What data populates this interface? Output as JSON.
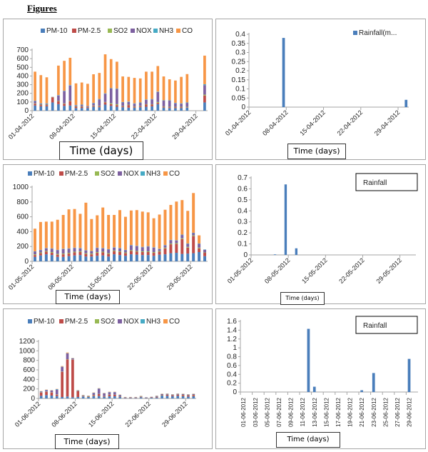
{
  "heading": "Figures",
  "colors": {
    "PM-10": "#4a7ebb",
    "PM-2.5": "#be4b48",
    "SO2": "#98b954",
    "NOX": "#7d60a0",
    "NH3": "#46aac5",
    "CO": "#f79646",
    "Rainfall": "#4a7ebb"
  },
  "chart_data": [
    {
      "id": "april-pollutants",
      "type": "bar",
      "stacked": true,
      "title": "",
      "xlabel": "Time (days)",
      "ylabel": "",
      "ylim": [
        0,
        700
      ],
      "yticks": [
        0,
        100,
        200,
        300,
        400,
        500,
        600,
        700
      ],
      "xtick_labels": [
        "01-04-2012",
        "08-04-2012",
        "15-04-2012",
        "22-04-2012",
        "29-04-2012"
      ],
      "legend": [
        "PM-10",
        "PM-2.5",
        "SO2",
        "NOX",
        "NH3",
        "CO"
      ],
      "legend_position": "top",
      "days": 30,
      "series": [
        {
          "name": "PM-10",
          "values": [
            60,
            50,
            50,
            95,
            75,
            55,
            60,
            30,
            30,
            30,
            45,
            40,
            70,
            55,
            45,
            40,
            35,
            35,
            40,
            45,
            50,
            75,
            35,
            30,
            30,
            30,
            35,
            null,
            null,
            95
          ]
        },
        {
          "name": "PM-2.5",
          "values": [
            20,
            15,
            15,
            60,
            35,
            25,
            50,
            15,
            15,
            10,
            10,
            10,
            25,
            20,
            20,
            10,
            30,
            10,
            10,
            25,
            20,
            15,
            10,
            10,
            10,
            10,
            5,
            null,
            null,
            80
          ]
        },
        {
          "name": "SO2",
          "values": [
            5,
            5,
            5,
            3,
            5,
            5,
            5,
            5,
            5,
            3,
            5,
            5,
            5,
            10,
            10,
            5,
            5,
            5,
            5,
            5,
            5,
            10,
            5,
            5,
            5,
            5,
            5,
            null,
            null,
            10
          ]
        },
        {
          "name": "NOX",
          "values": [
            25,
            10,
            10,
            2,
            60,
            140,
            175,
            10,
            15,
            10,
            25,
            75,
            95,
            170,
            175,
            40,
            30,
            30,
            35,
            50,
            55,
            115,
            65,
            70,
            40,
            35,
            45,
            null,
            null,
            110
          ]
        },
        {
          "name": "NH3",
          "values": [
            5,
            5,
            5,
            0,
            5,
            5,
            5,
            5,
            5,
            2,
            5,
            5,
            5,
            5,
            5,
            5,
            5,
            5,
            5,
            5,
            5,
            5,
            5,
            5,
            5,
            5,
            5,
            null,
            null,
            10
          ]
        },
        {
          "name": "CO",
          "values": [
            335,
            325,
            300,
            0,
            340,
            345,
            315,
            250,
            255,
            255,
            330,
            300,
            450,
            335,
            310,
            295,
            285,
            293,
            277,
            320,
            315,
            295,
            275,
            242,
            258,
            305,
            327,
            null,
            null,
            330
          ]
        }
      ]
    },
    {
      "id": "april-rainfall",
      "type": "bar",
      "title": "",
      "xlabel": "Time (days)",
      "ylabel": "",
      "ylim": [
        0,
        0.4
      ],
      "yticks": [
        0,
        0.05,
        0.1,
        0.15,
        0.2,
        0.25,
        0.3,
        0.35,
        0.4
      ],
      "xtick_labels": [
        "01-04-2012",
        "08-04-2012",
        "15-04-2012",
        "22-04-2012",
        "29-04-2012"
      ],
      "legend": [
        "Rainfall(m..."
      ],
      "legend_position": "top-right",
      "legend_boxed": false,
      "days": 30,
      "series": [
        {
          "name": "Rainfall(m...",
          "values": [
            0,
            0,
            0,
            0,
            0,
            0,
            0.38,
            0,
            0,
            0,
            0,
            0,
            0,
            0,
            0,
            0,
            0,
            0,
            0,
            0,
            0,
            0,
            0,
            0,
            0,
            0,
            0,
            0,
            0,
            0.04
          ]
        }
      ]
    },
    {
      "id": "may-pollutants",
      "type": "bar",
      "stacked": true,
      "title": "",
      "xlabel": "Time (days)",
      "ylabel": "",
      "ylim": [
        0,
        1000
      ],
      "yticks": [
        0,
        200,
        400,
        600,
        800,
        1000
      ],
      "xtick_labels": [
        "01-05-2012",
        "08-05-2012",
        "15-05-2012",
        "22-05-2012",
        "29-05-2012"
      ],
      "legend": [
        "PM-10",
        "PM-2.5",
        "SO2",
        "NOX",
        "NH3",
        "CO"
      ],
      "legend_position": "top",
      "days": 31,
      "series": [
        {
          "name": "PM-10",
          "values": [
            60,
            80,
            95,
            85,
            60,
            60,
            70,
            80,
            85,
            65,
            65,
            75,
            80,
            65,
            95,
            85,
            75,
            95,
            90,
            85,
            85,
            75,
            90,
            95,
            110,
            115,
            100,
            105,
            110,
            125,
            70
          ]
        },
        {
          "name": "PM-2.5",
          "values": [
            25,
            30,
            35,
            30,
            30,
            35,
            35,
            40,
            40,
            35,
            30,
            40,
            40,
            35,
            40,
            40,
            35,
            45,
            40,
            40,
            40,
            40,
            40,
            80,
            120,
            120,
            200,
            80,
            230,
            50,
            45
          ]
        },
        {
          "name": "SO2",
          "values": [
            10,
            10,
            10,
            10,
            10,
            10,
            10,
            10,
            10,
            10,
            10,
            10,
            10,
            10,
            10,
            10,
            10,
            10,
            10,
            10,
            10,
            10,
            10,
            10,
            10,
            10,
            10,
            10,
            10,
            10,
            5
          ]
        },
        {
          "name": "NOX",
          "values": [
            35,
            30,
            35,
            45,
            50,
            60,
            55,
            50,
            40,
            35,
            30,
            55,
            45,
            50,
            40,
            40,
            30,
            65,
            65,
            55,
            65,
            60,
            25,
            30,
            45,
            35,
            45,
            40,
            30,
            50,
            35
          ]
        },
        {
          "name": "NH3",
          "values": [
            5,
            5,
            5,
            5,
            5,
            5,
            5,
            5,
            5,
            5,
            5,
            5,
            5,
            5,
            5,
            5,
            5,
            5,
            5,
            5,
            5,
            5,
            5,
            5,
            5,
            5,
            5,
            5,
            5,
            5,
            5
          ]
        },
        {
          "name": "CO",
          "values": [
            305,
            375,
            355,
            360,
            405,
            455,
            525,
            520,
            460,
            640,
            430,
            435,
            545,
            460,
            435,
            510,
            445,
            465,
            480,
            475,
            455,
            390,
            460,
            475,
            470,
            520,
            465,
            440,
            535,
            110,
            0
          ]
        }
      ]
    },
    {
      "id": "may-rainfall",
      "type": "bar",
      "title": "",
      "xlabel": "Time (days)",
      "ylabel": "",
      "ylim": [
        0,
        0.7
      ],
      "yticks": [
        0,
        0.1,
        0.2,
        0.3,
        0.4,
        0.5,
        0.6,
        0.7
      ],
      "xtick_labels": [
        "01-05-2012",
        "08-05-2012",
        "15-05-2012",
        "22-05-2012",
        "29-05-2012"
      ],
      "legend": [
        "Rainfall"
      ],
      "legend_position": "top-right",
      "legend_boxed": true,
      "days": 31,
      "series": [
        {
          "name": "Rainfall",
          "values": [
            0,
            0,
            0,
            0,
            0.005,
            0,
            0.64,
            0,
            0.06,
            0,
            0,
            0,
            0,
            0,
            0,
            0,
            0,
            0,
            0,
            0,
            0,
            0,
            0,
            0,
            0,
            0,
            0,
            0,
            0,
            0,
            0
          ]
        }
      ]
    },
    {
      "id": "june-pollutants",
      "type": "bar",
      "stacked": true,
      "title": "",
      "xlabel": "Time (days)",
      "ylabel": "",
      "ylim": [
        0,
        1200
      ],
      "yticks": [
        0,
        200,
        400,
        600,
        800,
        1000,
        1200
      ],
      "xtick_labels": [
        "01-06-2012",
        "08-06-2012",
        "15-06-2012",
        "22-06-2012",
        "29-06-2012"
      ],
      "legend": [
        "PM-10",
        "PM-2.5",
        "SO2",
        "NOX",
        "NH3",
        "CO"
      ],
      "legend_position": "top",
      "days": 30,
      "series": [
        {
          "name": "PM-10",
          "values": [
            55,
            70,
            60,
            50,
            30,
            40,
            25,
            30,
            40,
            30,
            50,
            50,
            35,
            45,
            45,
            30,
            10,
            10,
            10,
            25,
            10,
            15,
            20,
            60,
            55,
            45,
            55,
            45,
            40,
            45
          ]
        },
        {
          "name": "PM-2.5",
          "values": [
            70,
            70,
            65,
            30,
            530,
            780,
            790,
            120,
            10,
            10,
            20,
            40,
            10,
            30,
            30,
            10,
            10,
            10,
            10,
            10,
            5,
            10,
            10,
            10,
            20,
            15,
            20,
            25,
            20,
            25
          ]
        },
        {
          "name": "SO2",
          "values": [
            5,
            5,
            5,
            5,
            5,
            5,
            5,
            5,
            5,
            5,
            5,
            5,
            5,
            5,
            5,
            5,
            2,
            2,
            2,
            5,
            2,
            2,
            5,
            5,
            5,
            5,
            5,
            5,
            5,
            5
          ]
        },
        {
          "name": "NOX",
          "values": [
            15,
            30,
            35,
            100,
            100,
            120,
            20,
            10,
            10,
            5,
            40,
            110,
            55,
            50,
            50,
            25,
            5,
            5,
            5,
            5,
            5,
            5,
            15,
            15,
            15,
            15,
            15,
            15,
            15,
            15
          ]
        },
        {
          "name": "NH3",
          "values": [
            5,
            5,
            5,
            10,
            5,
            5,
            5,
            5,
            5,
            5,
            5,
            5,
            5,
            5,
            5,
            5,
            2,
            2,
            2,
            5,
            2,
            2,
            5,
            5,
            5,
            5,
            5,
            5,
            5,
            5
          ]
        },
        {
          "name": "CO",
          "values": [
            5,
            5,
            5,
            5,
            10,
            15,
            5,
            5,
            5,
            5,
            5,
            5,
            5,
            5,
            5,
            5,
            2,
            2,
            2,
            5,
            2,
            2,
            5,
            5,
            5,
            5,
            5,
            5,
            5,
            5
          ]
        }
      ]
    },
    {
      "id": "june-rainfall",
      "type": "bar",
      "title": "",
      "xlabel": "Time (days)",
      "ylabel": "",
      "ylim": [
        0,
        1.6
      ],
      "yticks": [
        0,
        0.2,
        0.4,
        0.6,
        0.8,
        1,
        1.2,
        1.4,
        1.6
      ],
      "xtick_labels": [
        "01-06-2012",
        "03-06-2012",
        "05-06-2012",
        "07-06-2012",
        "09-06-2012",
        "11-06-2012",
        "13-06-2012",
        "15-06-2012",
        "17-06-2012",
        "19-06-2012",
        "21-06-2012",
        "23-06-2012",
        "25-06-2012",
        "27-06-2012",
        "29-06-2012"
      ],
      "legend": [
        "Rainfall"
      ],
      "legend_position": "top-right",
      "legend_boxed": true,
      "days": 30,
      "series": [
        {
          "name": "Rainfall",
          "values": [
            0,
            0,
            0,
            0,
            0,
            0,
            0,
            0,
            0,
            0,
            0,
            1.43,
            0.12,
            0,
            0,
            0,
            0,
            0,
            0,
            0,
            0.04,
            0,
            0.43,
            0,
            0,
            0,
            0,
            0,
            0.75,
            0
          ]
        }
      ]
    }
  ]
}
